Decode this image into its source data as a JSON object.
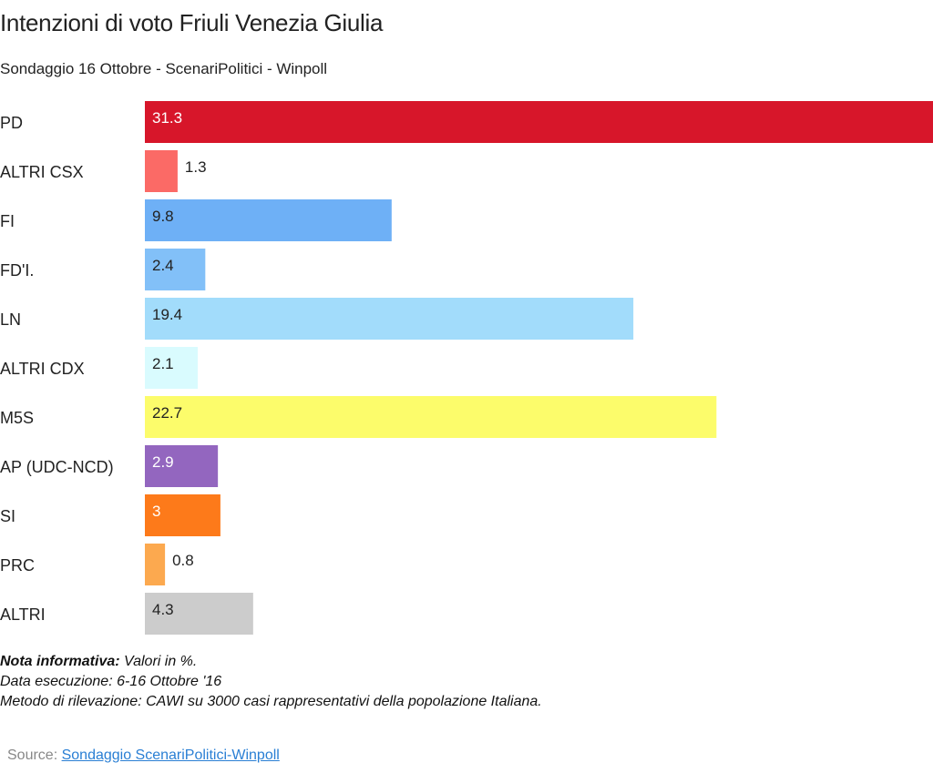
{
  "title": "Intenzioni di voto Friuli Venezia Giulia",
  "subtitle": "Sondaggio 16 Ottobre - ScenariPolitici - Winpoll",
  "notes": {
    "line1_bold": "Nota informativa:",
    "line1_rest": " Valori in %.",
    "line2": "Data esecuzione: 6-16  Ottobre '16",
    "line3": "Metodo di rilevazione: CAWI su 3000 casi rappresentativi della popolazione Italiana."
  },
  "source": {
    "label": "Source: ",
    "link_text": "Sondaggio ScenariPolitici-Winpoll"
  },
  "chart_data": {
    "type": "bar",
    "orientation": "horizontal",
    "title": "Intenzioni di voto Friuli Venezia Giulia",
    "subtitle": "Sondaggio 16 Ottobre - ScenariPolitici - Winpoll",
    "xlabel": "",
    "ylabel": "",
    "grid": false,
    "legend": "none",
    "xlim": [
      0,
      31.3
    ],
    "categories": [
      "PD",
      "ALTRI CSX",
      "FI",
      "FD'I.",
      "LN",
      "ALTRI CDX",
      "M5S",
      "AP (UDC-NCD)",
      "SI",
      "PRC",
      "ALTRI"
    ],
    "values": [
      31.3,
      1.3,
      9.8,
      2.4,
      19.4,
      2.1,
      22.7,
      2.9,
      3,
      0.8,
      4.3
    ],
    "value_labels": [
      "31.3",
      "1.3",
      "9.8",
      "2.4",
      "19.4",
      "2.1",
      "22.7",
      "2.9",
      "3",
      "0.8",
      "4.3"
    ],
    "colors": [
      "#d7162a",
      "#fb6a66",
      "#6eb0f6",
      "#82c0f8",
      "#a2dcfb",
      "#d9fbfe",
      "#fcfc6b",
      "#9366bf",
      "#fd7a1a",
      "#fca94f",
      "#cccccc"
    ],
    "label_colors": [
      "#ffffff",
      "#222222",
      "#222222",
      "#222222",
      "#222222",
      "#222222",
      "#222222",
      "#ffffff",
      "#ffffff",
      "#222222",
      "#222222"
    ]
  }
}
